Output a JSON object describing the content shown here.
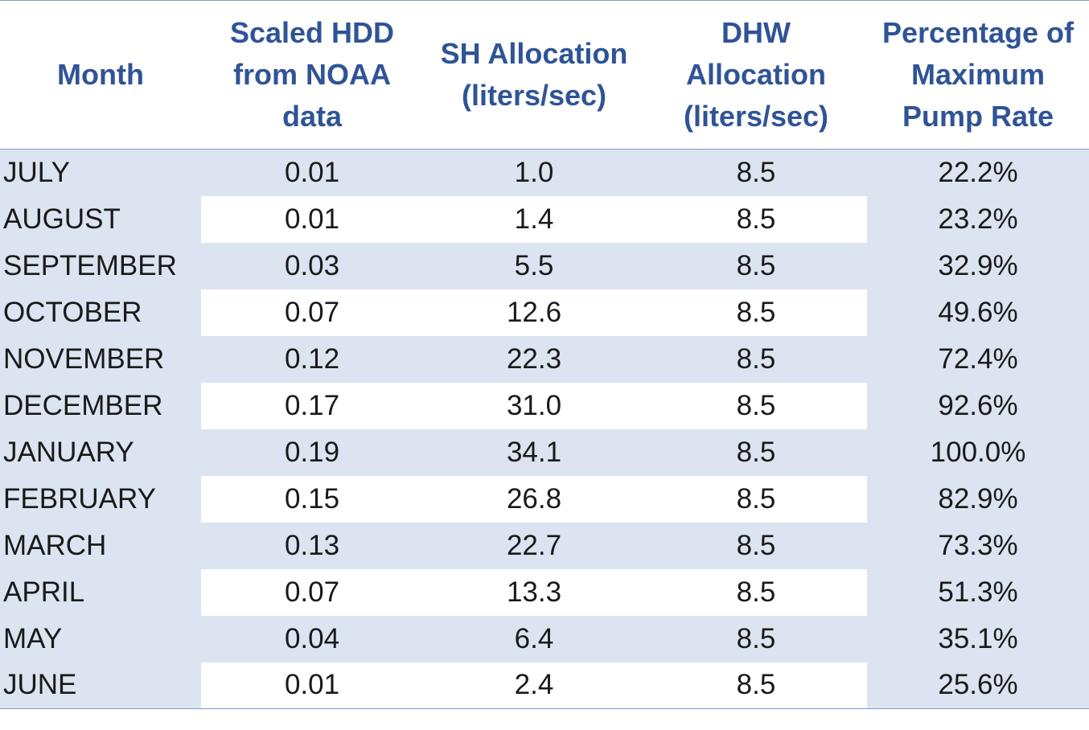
{
  "chart_data": {
    "type": "table",
    "columns": [
      {
        "lines": [
          "Month"
        ]
      },
      {
        "lines": [
          "Scaled HDD",
          "from NOAA",
          "data"
        ]
      },
      {
        "lines": [
          "SH Allocation",
          "(liters/sec)"
        ]
      },
      {
        "lines": [
          "DHW",
          "Allocation",
          "(liters/sec)"
        ]
      },
      {
        "lines": [
          "Percentage of",
          "Maximum",
          "Pump Rate"
        ]
      }
    ],
    "rows": [
      [
        "JULY",
        "0.01",
        "1.0",
        "8.5",
        "22.2%"
      ],
      [
        "AUGUST",
        "0.01",
        "1.4",
        "8.5",
        "23.2%"
      ],
      [
        "SEPTEMBER",
        "0.03",
        "5.5",
        "8.5",
        "32.9%"
      ],
      [
        "OCTOBER",
        "0.07",
        "12.6",
        "8.5",
        "49.6%"
      ],
      [
        "NOVEMBER",
        "0.12",
        "22.3",
        "8.5",
        "72.4%"
      ],
      [
        "DECEMBER",
        "0.17",
        "31.0",
        "8.5",
        "92.6%"
      ],
      [
        "JANUARY",
        "0.19",
        "34.1",
        "8.5",
        "100.0%"
      ],
      [
        "FEBRUARY",
        "0.15",
        "26.8",
        "8.5",
        "82.9%"
      ],
      [
        "MARCH",
        "0.13",
        "22.7",
        "8.5",
        "73.3%"
      ],
      [
        "APRIL",
        "0.07",
        "13.3",
        "8.5",
        "51.3%"
      ],
      [
        "MAY",
        "0.04",
        "6.4",
        "8.5",
        "35.1%"
      ],
      [
        "JUNE",
        "0.01",
        "2.4",
        "8.5",
        "25.6%"
      ]
    ]
  },
  "colors": {
    "header_text": "#2f5496",
    "band": "#dbe4f0",
    "rule": "#7f9ccb",
    "cell_text": "#1a1a1a"
  }
}
